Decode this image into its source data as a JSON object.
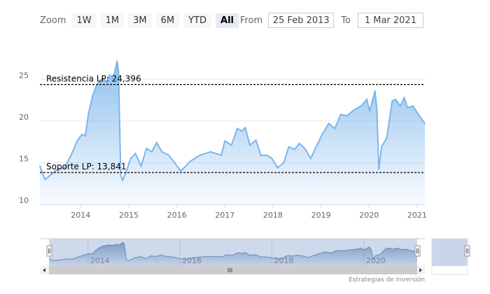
{
  "range_selector": {
    "zoom_label": "Zoom",
    "buttons": [
      "1W",
      "1M",
      "3M",
      "6M",
      "YTD",
      "All"
    ],
    "selected": "All",
    "from_label": "From",
    "from_value": "25 Feb 2013",
    "to_label": "To",
    "to_value": "1 Mar 2021"
  },
  "credits": "Estrategias de Inversión",
  "colors": {
    "series": "#7cb5ec",
    "resistance": "#006400",
    "support": "#8b0000",
    "navigator_mask": "#c9d5ea"
  },
  "chart_data": {
    "type": "area",
    "ylim": [
      10,
      28.8
    ],
    "xlim": [
      "2013-02-25",
      "2021-03-01"
    ],
    "y_ticks": [
      "10",
      "15",
      "20",
      "25"
    ],
    "x_ticks": [
      "2014",
      "2015",
      "2016",
      "2017",
      "2018",
      "2019",
      "2020",
      "2021"
    ],
    "navigator_ticks": [
      "2014",
      "2016",
      "2018",
      "2020"
    ],
    "grid": true,
    "plot_lines": [
      {
        "label": "Resistencia LP: 24,396",
        "value": 24.396,
        "style": "dashed"
      },
      {
        "label": "Soporte LP: 13,841",
        "value": 13.841,
        "style": "dashed"
      }
    ],
    "series": [
      {
        "points": [
          [
            "2013-02-25",
            14.6
          ],
          [
            "2013-04-05",
            13.0
          ],
          [
            "2013-05-15",
            13.5
          ],
          [
            "2013-07-05",
            14.2
          ],
          [
            "2013-09-01",
            14.4
          ],
          [
            "2013-10-20",
            15.9
          ],
          [
            "2013-12-05",
            17.6
          ],
          [
            "2014-01-10",
            18.4
          ],
          [
            "2014-02-05",
            18.2
          ],
          [
            "2014-03-01",
            20.9
          ],
          [
            "2014-04-01",
            23.0
          ],
          [
            "2014-05-01",
            24.3
          ],
          [
            "2014-06-15",
            25.1
          ],
          [
            "2014-07-15",
            24.7
          ],
          [
            "2014-08-10",
            25.5
          ],
          [
            "2014-09-05",
            25.1
          ],
          [
            "2014-10-05",
            27.2
          ],
          [
            "2014-10-15",
            26.0
          ],
          [
            "2014-11-01",
            13.5
          ],
          [
            "2014-11-15",
            12.9
          ],
          [
            "2014-12-10",
            13.8
          ],
          [
            "2015-01-15",
            15.5
          ],
          [
            "2015-02-20",
            16.1
          ],
          [
            "2015-04-05",
            14.6
          ],
          [
            "2015-05-15",
            16.7
          ],
          [
            "2015-06-25",
            16.3
          ],
          [
            "2015-08-01",
            17.4
          ],
          [
            "2015-09-10",
            16.3
          ],
          [
            "2015-11-01",
            15.9
          ],
          [
            "2016-02-01",
            14.0
          ],
          [
            "2016-04-15",
            15.2
          ],
          [
            "2016-06-25",
            15.9
          ],
          [
            "2016-09-15",
            16.3
          ],
          [
            "2016-12-05",
            15.9
          ],
          [
            "2017-01-01",
            17.6
          ],
          [
            "2017-02-20",
            17.1
          ],
          [
            "2017-04-05",
            19.1
          ],
          [
            "2017-05-10",
            18.8
          ],
          [
            "2017-06-05",
            19.2
          ],
          [
            "2017-07-10",
            17.1
          ],
          [
            "2017-08-25",
            17.7
          ],
          [
            "2017-10-01",
            15.9
          ],
          [
            "2017-11-15",
            15.9
          ],
          [
            "2017-12-25",
            15.5
          ],
          [
            "2018-02-05",
            14.4
          ],
          [
            "2018-03-25",
            15.0
          ],
          [
            "2018-05-01",
            16.9
          ],
          [
            "2018-06-15",
            16.6
          ],
          [
            "2018-07-20",
            17.3
          ],
          [
            "2018-09-01",
            16.7
          ],
          [
            "2018-10-15",
            15.5
          ],
          [
            "2018-12-01",
            17.1
          ],
          [
            "2019-01-10",
            18.4
          ],
          [
            "2019-03-01",
            19.7
          ],
          [
            "2019-04-15",
            19.1
          ],
          [
            "2019-06-01",
            20.8
          ],
          [
            "2019-07-15",
            20.6
          ],
          [
            "2019-09-05",
            21.3
          ],
          [
            "2019-11-01",
            21.8
          ],
          [
            "2019-12-15",
            22.6
          ],
          [
            "2020-01-05",
            21.2
          ],
          [
            "2020-02-15",
            23.6
          ],
          [
            "2020-03-01",
            21.3
          ],
          [
            "2020-03-15",
            14.2
          ],
          [
            "2020-04-05",
            16.9
          ],
          [
            "2020-05-15",
            18.0
          ],
          [
            "2020-06-25",
            22.4
          ],
          [
            "2020-07-20",
            22.6
          ],
          [
            "2020-08-25",
            21.8
          ],
          [
            "2020-09-25",
            22.8
          ],
          [
            "2020-10-20",
            21.6
          ],
          [
            "2020-12-01",
            21.8
          ],
          [
            "2021-01-10",
            20.8
          ],
          [
            "2021-03-01",
            19.7
          ]
        ]
      }
    ]
  }
}
